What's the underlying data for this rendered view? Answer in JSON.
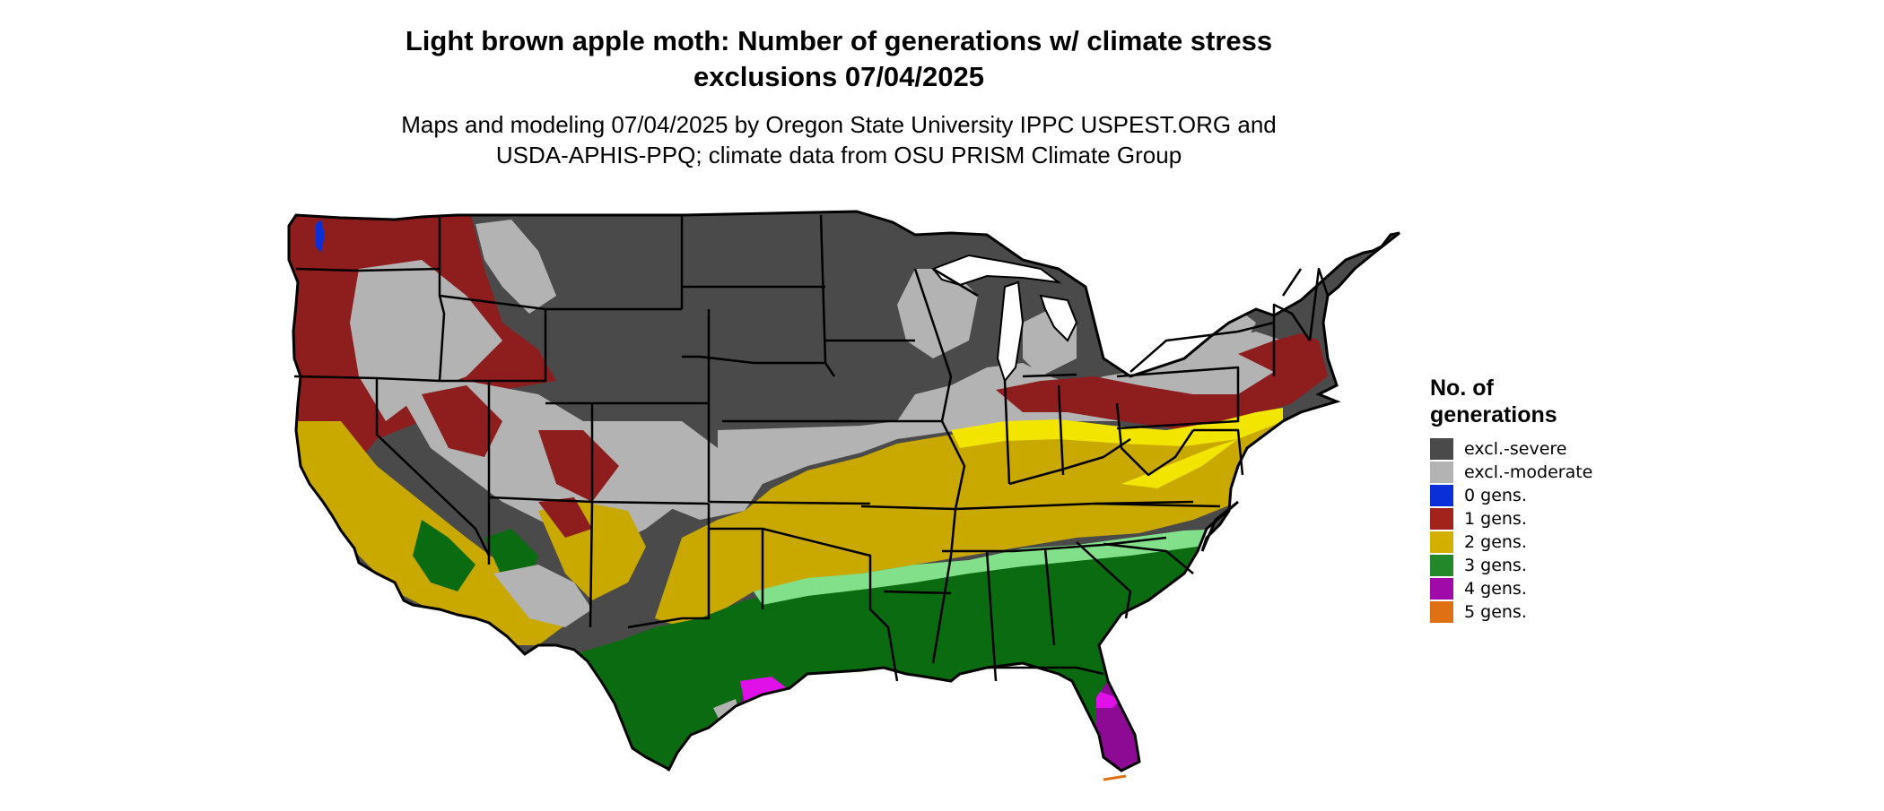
{
  "title": {
    "line1": "Light brown apple moth: Number of generations w/ climate stress",
    "line2": "exclusions 07/04/2025"
  },
  "subtitle": {
    "line1": "Maps and modeling 07/04/2025 by Oregon State University IPPC USPEST.ORG and",
    "line2": "USDA-APHIS-PPQ; climate data from OSU PRISM Climate Group"
  },
  "legend": {
    "title_line1": "No. of",
    "title_line2": "generations",
    "items": [
      {
        "label": "excl.-severe",
        "color": "#4a4a4a"
      },
      {
        "label": "excl.-moderate",
        "color": "#b3b3b3"
      },
      {
        "label": "0 gens.",
        "color": "#0a2ed8"
      },
      {
        "label": "1 gens.",
        "color": "#a2231c"
      },
      {
        "label": "2 gens.",
        "color": "#d2af00"
      },
      {
        "label": "3 gens.",
        "color": "#22882a"
      },
      {
        "label": "4 gens.",
        "color": "#a00aa8"
      },
      {
        "label": "5 gens.",
        "color": "#e07014"
      }
    ]
  },
  "map_colors": {
    "excl_severe": "#4a4a4a",
    "excl_moderate": "#b3b3b3",
    "gens_1": "#8e1e1e",
    "gens_2": "#c9a800",
    "gens_2_bright": "#f2e600",
    "gens_3": "#0a6b10",
    "gens_3_light": "#82e08a",
    "gens_4": "#8c0a94",
    "gens_4_bright": "#e010e8",
    "gens_5": "#e07014",
    "gens_0": "#0a2ed8",
    "borders": "#000000"
  }
}
